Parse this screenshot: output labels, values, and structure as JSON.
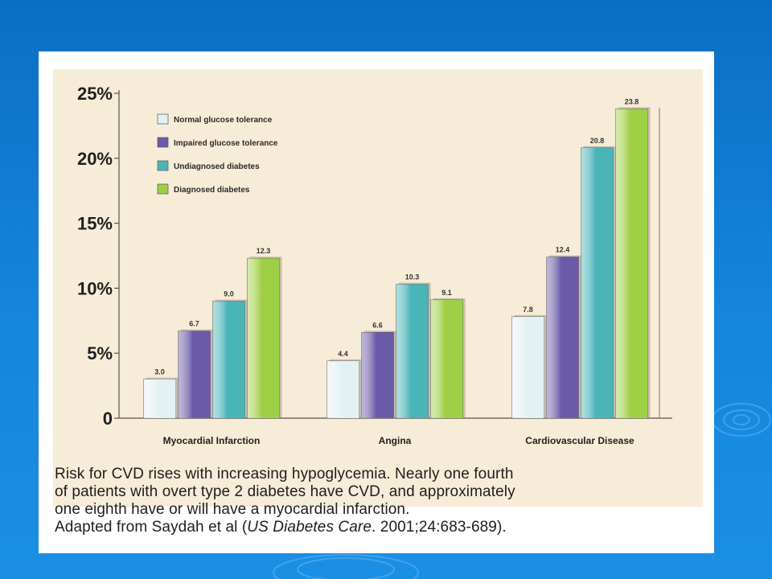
{
  "slide": {
    "caption_lines": [
      "Risk for CVD rises with increasing hypoglycemia. Nearly one fourth",
      "of patients with overt type 2 diabetes have CVD, and approximately",
      "one eighth have or will have a myocardial infarction."
    ],
    "citation_prefix": "Adapted from Saydah et al (",
    "citation_italic": "US Diabetes Care",
    "citation_suffix": ". 2001;24:683-689).",
    "background_color": "#1685dc",
    "chart_background": "#f7ecd7"
  },
  "chart_data": {
    "type": "bar",
    "title": "",
    "xlabel": "",
    "ylabel": "",
    "categories": [
      "Myocardial Infarction",
      "Angina",
      "Cardiovascular Disease"
    ],
    "series": [
      {
        "name": "Normal glucose tolerance",
        "color": "#e4f1f4",
        "values": [
          3.0,
          4.4,
          7.8
        ],
        "labels": [
          "3.0",
          "4.4",
          "7.8"
        ]
      },
      {
        "name": "Impaired glucose tolerance",
        "color": "#6a5ba8",
        "values": [
          6.7,
          6.6,
          12.4
        ],
        "labels": [
          "6.7",
          "6.6",
          "12.4"
        ]
      },
      {
        "name": "Undiagnosed diabetes",
        "color": "#4ab4b8",
        "values": [
          9.0,
          10.3,
          20.8
        ],
        "labels": [
          "9.0",
          "10.3",
          "20.8"
        ]
      },
      {
        "name": "Diagnosed diabetes",
        "color": "#9fcf45",
        "values": [
          12.3,
          9.1,
          23.8
        ],
        "labels": [
          "12.3",
          "9.1",
          "23.8"
        ]
      }
    ],
    "ylim": [
      0,
      25
    ],
    "y_ticks": [
      0,
      5,
      10,
      15,
      20,
      25
    ],
    "y_tick_labels": [
      "0",
      "5%",
      "10%",
      "15%",
      "20%",
      "25%"
    ],
    "legend_position": "top-left",
    "grid": false
  }
}
